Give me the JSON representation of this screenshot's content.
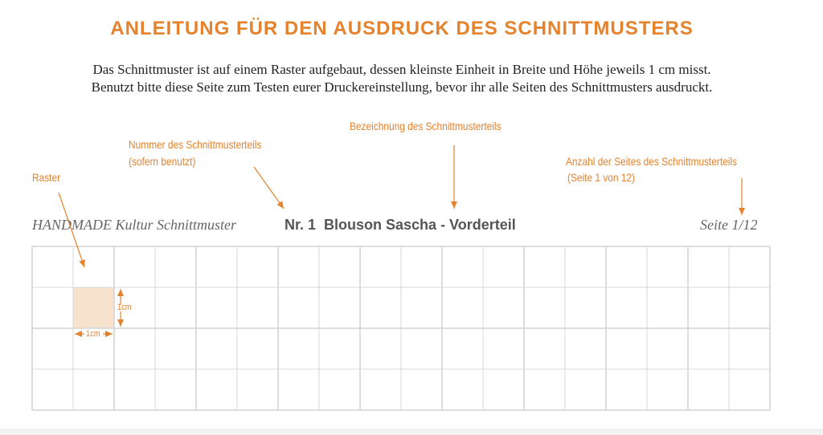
{
  "title": "ANLEITUNG FÜR DEN AUSDRUCK DES SCHNITTMUSTERS",
  "intro": [
    "Das Schnittmuster ist auf einem Raster aufgebaut, dessen kleinste Einheit in Breite und Höhe jeweils 1 cm misst.",
    "Benutzt bitte diese Seite zum Testen eurer Druckereinstellung, bevor ihr alle Seiten des Schnittmusters ausdruckt."
  ],
  "annotations": {
    "raster": "Raster",
    "nummer": "Nummer des Schnittmusterteils",
    "nummer_note": "(sofern benutzt)",
    "bezeichnung": "Bezeichnung des Schnittmusterteils",
    "anzahl": "Anzahl der Seites des Schnittmusterteils",
    "anzahl_note": "(Seite 1 von 12)",
    "cm_w": "1cm",
    "cm_h": "1cm"
  },
  "header": {
    "brand": "HANDMADE Kultur Schnittmuster",
    "part": "Nr. 1  Blouson Sascha - Vorderteil",
    "page": "Seite 1/12"
  },
  "colors": {
    "accent": "#e5822e",
    "grid": "#d9d9d9",
    "cell_fill": "#f7e3cd"
  }
}
